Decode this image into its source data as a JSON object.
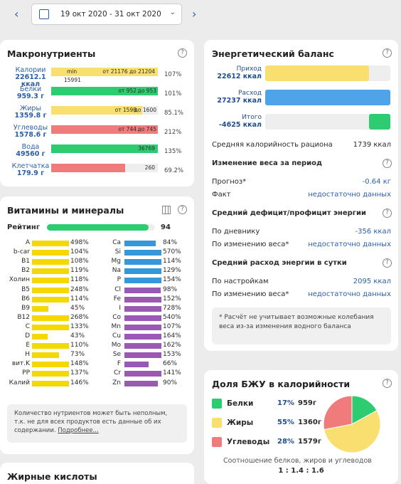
{
  "date_range": "19 окт 2020 - 31 окт 2020",
  "macros": {
    "title": "Макронутриенты",
    "rows": [
      {
        "label": "Калории",
        "value": "22612.1",
        "unit": "ккал",
        "pct": "107%",
        "fill": 1.0,
        "color": "#f9df6f",
        "left_text": "min",
        "mid_text": "от 21176 до 21204",
        "below": "15991"
      },
      {
        "label": "Белки",
        "value": "959.3 г",
        "pct": "101%",
        "fill": 1.0,
        "color": "#2ecc71",
        "mid_text": "от 952",
        "right_text": "до 953"
      },
      {
        "label": "Жиры",
        "value": "1359.8 г",
        "pct": "85.1%",
        "fill": 0.85,
        "color": "#f9df6f",
        "mid_text": "от 1598",
        "right_text": "до 1600"
      },
      {
        "label": "Углеводы",
        "value": "1578.6 г",
        "pct": "212%",
        "fill": 1.0,
        "color": "#f07b7b",
        "mid_text": "от 744",
        "right_text": "до 745"
      },
      {
        "label": "Вода",
        "value": "49560 г",
        "pct": "135%",
        "fill": 1.0,
        "color": "#2ecc71",
        "mid_text": "36769"
      },
      {
        "label": "Клетчатка",
        "value": "179.9 г",
        "pct": "69.2%",
        "fill": 0.69,
        "color": "#f07b7b",
        "mid_text": "260"
      }
    ]
  },
  "energy": {
    "title": "Энергетический баланс",
    "bars": [
      {
        "label": "Приход",
        "value": "22612 ккал",
        "fill": 0.83,
        "color": "#f9df6f"
      },
      {
        "label": "Расход",
        "value": "27237 ккал",
        "fill": 1.0,
        "color": "#4fa3e8"
      },
      {
        "label": "Итого",
        "value": "-4625 ккал",
        "fill": 0.17,
        "color": "#2ecc71"
      }
    ],
    "avg_label": "Средняя калорийность рациона",
    "avg_value": "1739 ккал",
    "weight_title": "Изменение веса за период",
    "forecast_label": "Прогноз*",
    "forecast_value": "-0.64 кг",
    "fact_label": "Факт",
    "fact_value": "недостаточно данных",
    "deficit_title": "Средний дефицит/профицит энергии",
    "diary_label": "По дневнику",
    "diary_value": "-356 ккал",
    "byweight_label": "По изменению веса*",
    "byweight_value": "недостаточно данных",
    "spend_title": "Средний расход энергии в сутки",
    "settings_label": "По настройкам",
    "settings_value": "2095 ккал",
    "byweight2_label": "По изменению веса*",
    "byweight2_value": "недостаточно данных",
    "note": "* Расчёт не учитывает возможные колебания веса из-за изменения водного баланса"
  },
  "vitamins": {
    "title": "Витамины и минералы",
    "rating_label": "Рейтинг",
    "rating_value": "94",
    "rating_fill": 0.94,
    "left": [
      {
        "name": "A",
        "pct": "498%",
        "fill": 1.0
      },
      {
        "name": "b-car",
        "pct": "104%",
        "fill": 1.0
      },
      {
        "name": "B1",
        "pct": "108%",
        "fill": 1.0
      },
      {
        "name": "B2",
        "pct": "119%",
        "fill": 1.0
      },
      {
        "name": "Холин",
        "pct": "118%",
        "fill": 1.0
      },
      {
        "name": "B5",
        "pct": "248%",
        "fill": 1.0
      },
      {
        "name": "B6",
        "pct": "114%",
        "fill": 1.0
      },
      {
        "name": "B9",
        "pct": "45%",
        "fill": 0.45
      },
      {
        "name": "B12",
        "pct": "268%",
        "fill": 1.0
      },
      {
        "name": "C",
        "pct": "133%",
        "fill": 1.0
      },
      {
        "name": "D",
        "pct": "43%",
        "fill": 0.43
      },
      {
        "name": "E",
        "pct": "110%",
        "fill": 1.0
      },
      {
        "name": "H",
        "pct": "73%",
        "fill": 0.73
      },
      {
        "name": "вит.K",
        "pct": "148%",
        "fill": 1.0
      },
      {
        "name": "PP",
        "pct": "137%",
        "fill": 1.0
      },
      {
        "name": "Калий",
        "pct": "146%",
        "fill": 1.0
      }
    ],
    "right": [
      {
        "name": "Ca",
        "pct": "84%",
        "fill": 0.84
      },
      {
        "name": "Si",
        "pct": "570%",
        "fill": 1.0
      },
      {
        "name": "Mg",
        "pct": "114%",
        "fill": 1.0
      },
      {
        "name": "Na",
        "pct": "129%",
        "fill": 1.0
      },
      {
        "name": "P",
        "pct": "154%",
        "fill": 1.0
      },
      {
        "name": "Cl",
        "pct": "98%",
        "fill": 0.98
      },
      {
        "name": "Fe",
        "pct": "152%",
        "fill": 1.0
      },
      {
        "name": "I",
        "pct": "728%",
        "fill": 1.0
      },
      {
        "name": "Co",
        "pct": "540%",
        "fill": 1.0
      },
      {
        "name": "Mn",
        "pct": "107%",
        "fill": 1.0
      },
      {
        "name": "Cu",
        "pct": "164%",
        "fill": 1.0
      },
      {
        "name": "Mo",
        "pct": "162%",
        "fill": 1.0
      },
      {
        "name": "Se",
        "pct": "153%",
        "fill": 1.0
      },
      {
        "name": "F",
        "pct": "66%",
        "fill": 0.66
      },
      {
        "name": "Cr",
        "pct": "141%",
        "fill": 1.0
      },
      {
        "name": "Zn",
        "pct": "90%",
        "fill": 0.9
      }
    ],
    "note": "Количество нутриентов может быть неполным, т.к. не для всех продуктов есть данные об их содержании.",
    "more_link": "Подробнее..."
  },
  "bju": {
    "title": "Доля БЖУ в калорийности",
    "rows": [
      {
        "label": "Белки",
        "pct": "17%",
        "grams": "959г",
        "color": "#2ecc71",
        "share": 0.17
      },
      {
        "label": "Жиры",
        "pct": "55%",
        "grams": "1360г",
        "color": "#f9df6f",
        "share": 0.55
      },
      {
        "label": "Углеводы",
        "pct": "28%",
        "grams": "1579г",
        "color": "#f07b7b",
        "share": 0.28
      }
    ],
    "ratio_caption": "Соотношение белков, жиров и углеводов",
    "ratio": "1 : 1.4 : 1.6"
  },
  "fatty": {
    "title": "Жирные кислоты"
  }
}
